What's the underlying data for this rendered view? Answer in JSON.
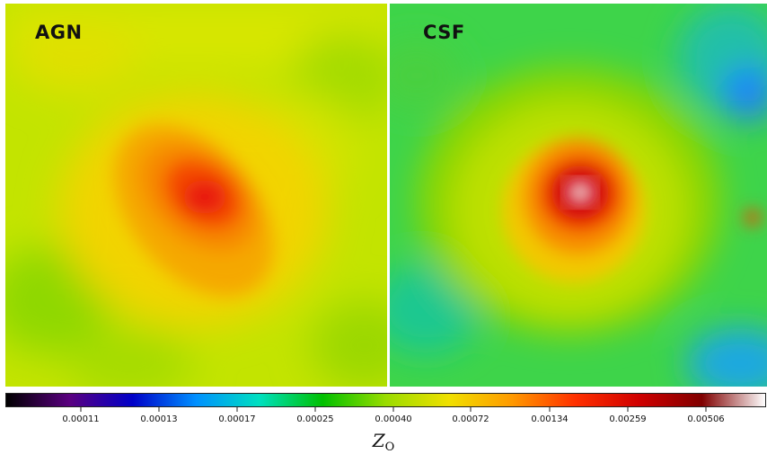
{
  "panels": [
    {
      "label": "AGN"
    },
    {
      "label": "CSF"
    }
  ],
  "colorbar": {
    "title_symbol": "Z",
    "title_subscript": "O",
    "tick_labels": [
      "0.00011",
      "0.00013",
      "0.00017",
      "0.00025",
      "0.00040",
      "0.00072",
      "0.00134",
      "0.00259",
      "0.00506"
    ],
    "colors": [
      "#000000",
      "#5a0080",
      "#0000c8",
      "#0090ff",
      "#00e0c0",
      "#00c000",
      "#9adc00",
      "#f0e000",
      "#ff9900",
      "#ff3000",
      "#d00000",
      "#800000",
      "#ffffff"
    ]
  },
  "colors": {
    "agn_background": "#c3e400",
    "agn_core": "#e8120a",
    "csf_background": "#3ed44a",
    "csf_core": "#d00008",
    "csf_center": "#f4f4f4"
  }
}
